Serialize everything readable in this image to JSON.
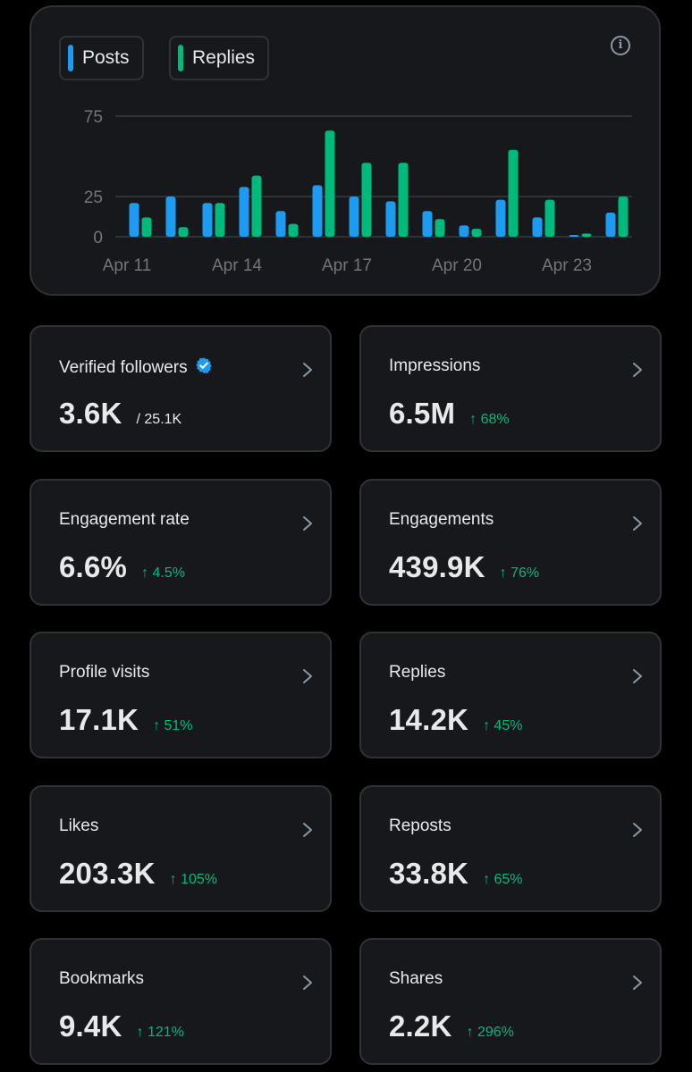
{
  "chart": {
    "info_icon": "info-circle-icon",
    "legend": [
      {
        "label": "Posts",
        "color": "#1d9bf0"
      },
      {
        "label": "Replies",
        "color": "#00ba7c"
      }
    ]
  },
  "chart_data": {
    "type": "bar",
    "categories": [
      "Apr 11",
      "Apr 12",
      "Apr 13",
      "Apr 14",
      "Apr 15",
      "Apr 16",
      "Apr 17",
      "Apr 18",
      "Apr 19",
      "Apr 20",
      "Apr 21",
      "Apr 22",
      "Apr 23",
      "Apr 24"
    ],
    "x_tick_labels": [
      "Apr 11",
      "Apr 14",
      "Apr 17",
      "Apr 20",
      "Apr 23"
    ],
    "y_ticks": [
      0,
      25,
      75
    ],
    "ylim": [
      0,
      75
    ],
    "series": [
      {
        "name": "Posts",
        "color": "#1d9bf0",
        "values": [
          21,
          25,
          21,
          31,
          16,
          32,
          25,
          22,
          16,
          7,
          23,
          12,
          1,
          15
        ]
      },
      {
        "name": "Replies",
        "color": "#00ba7c",
        "values": [
          12,
          6,
          21,
          38,
          8,
          66,
          46,
          46,
          11,
          5,
          54,
          23,
          2,
          25
        ]
      }
    ],
    "grid": true
  },
  "metrics": [
    {
      "label": "Verified followers",
      "value": "3.6K",
      "sub": "/ 25.1K",
      "verified": true
    },
    {
      "label": "Impressions",
      "value": "6.5M",
      "change": "↑ 68%"
    },
    {
      "label": "Engagement rate",
      "value": "6.6%",
      "change": "↑ 4.5%"
    },
    {
      "label": "Engagements",
      "value": "439.9K",
      "change": "↑ 76%"
    },
    {
      "label": "Profile visits",
      "value": "17.1K",
      "change": "↑ 51%"
    },
    {
      "label": "Replies",
      "value": "14.2K",
      "change": "↑ 45%"
    },
    {
      "label": "Likes",
      "value": "203.3K",
      "change": "↑ 105%"
    },
    {
      "label": "Reposts",
      "value": "33.8K",
      "change": "↑ 65%"
    },
    {
      "label": "Bookmarks",
      "value": "9.4K",
      "change": "↑ 121%"
    },
    {
      "label": "Shares",
      "value": "2.2K",
      "change": "↑ 296%"
    }
  ],
  "colors": {
    "accent": "#1d9bf0",
    "positive": "#00ba7c",
    "card_bg": "#16181c",
    "border": "#2f3336"
  }
}
